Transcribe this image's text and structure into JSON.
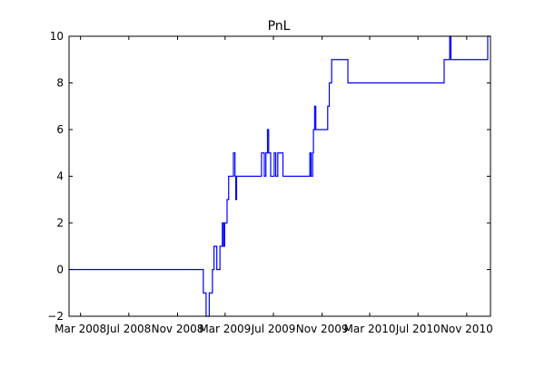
{
  "chart_data": {
    "type": "line",
    "title": "PnL",
    "xlabel": "",
    "ylabel": "",
    "x_axis": {
      "kind": "date",
      "range": [
        "2008-02-01",
        "2010-12-31"
      ],
      "ticks": [
        {
          "date": "2008-03-01",
          "label": "Mar 2008"
        },
        {
          "date": "2008-07-01",
          "label": "Jul 2008"
        },
        {
          "date": "2008-11-01",
          "label": "Nov 2008"
        },
        {
          "date": "2009-03-01",
          "label": "Mar 2009"
        },
        {
          "date": "2009-07-01",
          "label": "Jul 2009"
        },
        {
          "date": "2009-11-01",
          "label": "Nov 2009"
        },
        {
          "date": "2010-03-01",
          "label": "Mar 2010"
        },
        {
          "date": "2010-07-01",
          "label": "Jul 2010"
        },
        {
          "date": "2010-11-01",
          "label": "Nov 2010"
        }
      ]
    },
    "y_axis": {
      "range": [
        -2,
        10
      ],
      "ticks": [
        {
          "value": -2,
          "label": "−2"
        },
        {
          "value": 0,
          "label": "0"
        },
        {
          "value": 2,
          "label": "2"
        },
        {
          "value": 4,
          "label": "4"
        },
        {
          "value": 6,
          "label": "6"
        },
        {
          "value": 8,
          "label": "8"
        },
        {
          "value": 10,
          "label": "10"
        }
      ]
    },
    "grid": false,
    "legend": "none",
    "series": [
      {
        "color": "#0000ff",
        "step": true,
        "points": [
          {
            "x": "2008-02-01",
            "y": 0
          },
          {
            "x": "2009-01-05",
            "y": -1
          },
          {
            "x": "2009-01-12",
            "y": -2
          },
          {
            "x": "2009-01-20",
            "y": -1
          },
          {
            "x": "2009-01-28",
            "y": 0
          },
          {
            "x": "2009-02-01",
            "y": 1
          },
          {
            "x": "2009-02-08",
            "y": 0
          },
          {
            "x": "2009-02-16",
            "y": 1
          },
          {
            "x": "2009-02-22",
            "y": 2
          },
          {
            "x": "2009-02-25",
            "y": 1
          },
          {
            "x": "2009-02-28",
            "y": 2
          },
          {
            "x": "2009-03-06",
            "y": 3
          },
          {
            "x": "2009-03-10",
            "y": 4
          },
          {
            "x": "2009-03-22",
            "y": 5
          },
          {
            "x": "2009-03-26",
            "y": 4
          },
          {
            "x": "2009-03-28",
            "y": 3
          },
          {
            "x": "2009-03-30",
            "y": 4
          },
          {
            "x": "2009-06-01",
            "y": 5
          },
          {
            "x": "2009-06-08",
            "y": 4
          },
          {
            "x": "2009-06-12",
            "y": 5
          },
          {
            "x": "2009-06-16",
            "y": 6
          },
          {
            "x": "2009-06-19",
            "y": 5
          },
          {
            "x": "2009-06-24",
            "y": 4
          },
          {
            "x": "2009-07-03",
            "y": 5
          },
          {
            "x": "2009-07-07",
            "y": 4
          },
          {
            "x": "2009-07-12",
            "y": 5
          },
          {
            "x": "2009-07-25",
            "y": 4
          },
          {
            "x": "2009-10-01",
            "y": 5
          },
          {
            "x": "2009-10-04",
            "y": 4
          },
          {
            "x": "2009-10-08",
            "y": 5
          },
          {
            "x": "2009-10-10",
            "y": 6
          },
          {
            "x": "2009-10-13",
            "y": 7
          },
          {
            "x": "2009-10-16",
            "y": 6
          },
          {
            "x": "2009-11-15",
            "y": 7
          },
          {
            "x": "2009-11-19",
            "y": 8
          },
          {
            "x": "2009-11-25",
            "y": 9
          },
          {
            "x": "2010-01-05",
            "y": 8
          },
          {
            "x": "2010-09-05",
            "y": 9
          },
          {
            "x": "2010-09-19",
            "y": 10
          },
          {
            "x": "2010-09-22",
            "y": 9
          },
          {
            "x": "2010-12-24",
            "y": 10
          },
          {
            "x": "2010-12-31",
            "y": 10
          }
        ]
      }
    ]
  }
}
